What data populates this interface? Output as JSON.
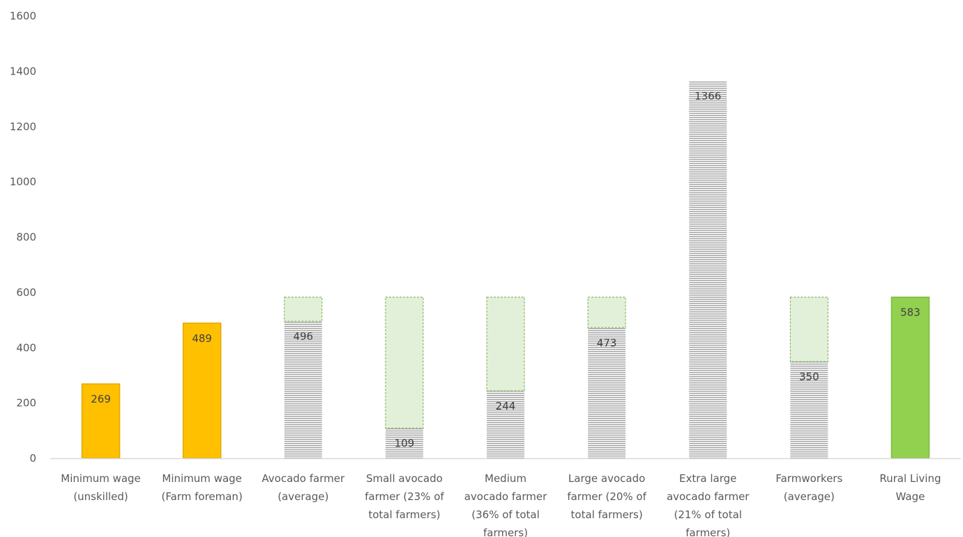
{
  "chart_data": {
    "type": "bar",
    "title": "",
    "xlabel": "",
    "ylabel": "",
    "ylim": [
      0,
      1600
    ],
    "yticks": [
      0,
      200,
      400,
      600,
      800,
      1000,
      1200,
      1400,
      1600
    ],
    "grid": false,
    "legend": "none",
    "categories": [
      [
        "Minimum wage",
        "(unskilled)"
      ],
      [
        "Minimum wage",
        "(Farm foreman)"
      ],
      [
        "Avocado farmer",
        "(average)"
      ],
      [
        "Small avocado",
        "farmer (23% of",
        "total farmers)"
      ],
      [
        "Medium",
        "avocado farmer",
        "(36% of total",
        "farmers)"
      ],
      [
        "Large avocado",
        "farmer (20% of",
        "total farmers)"
      ],
      [
        "Extra large",
        "avocado farmer",
        "(21% of total",
        "farmers)"
      ],
      [
        "Farmworkers",
        "(average)"
      ],
      [
        "Rural Living",
        "Wage"
      ]
    ],
    "values": [
      269,
      489,
      496,
      109,
      244,
      473,
      1366,
      350,
      583
    ],
    "bar_styles": [
      "wage",
      "wage",
      "income",
      "income",
      "income",
      "income",
      "income",
      "income",
      "living"
    ],
    "gap_to_living_wage": [
      0,
      0,
      87,
      474,
      339,
      110,
      0,
      233,
      0
    ],
    "colors": {
      "wage": "#FFC000",
      "wage_edge": "#E0A800",
      "income_stripe": "#A6A6A6",
      "living": "#92D050",
      "living_edge": "#7DB93F",
      "gap_fill": "#E2F0D9",
      "gap_edge": "#70AD47",
      "axis": "#D9D9D9"
    }
  }
}
